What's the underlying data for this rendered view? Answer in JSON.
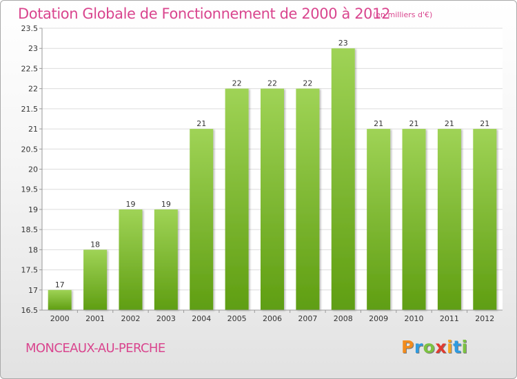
{
  "title": "Dotation Globale de Fonctionnement de 2000 à 2012",
  "subtitle": "(en milliers d'€)",
  "commune": "MONCEAUX-AU-PERCHE",
  "logo": {
    "letters": [
      "P",
      "r",
      "o",
      "x",
      "i",
      "t",
      "i"
    ],
    "colors": [
      "#f28c1e",
      "#2f9be0",
      "#7cc242",
      "#e23a2f",
      "#f5a623",
      "#2f9be0",
      "#7cc242"
    ]
  },
  "colors": {
    "title": "#d9458e",
    "bar_light": "#9fd356",
    "bar_dark": "#5f9e12"
  },
  "chart_data": {
    "type": "bar",
    "categories": [
      "2000",
      "2001",
      "2002",
      "2003",
      "2004",
      "2005",
      "2006",
      "2007",
      "2008",
      "2009",
      "2010",
      "2011",
      "2012"
    ],
    "values": [
      17,
      18,
      19,
      19,
      21,
      22,
      22,
      22,
      23,
      21,
      21,
      21,
      21
    ],
    "value_labels": [
      "17",
      "18",
      "19",
      "19",
      "21",
      "22",
      "22",
      "22",
      "23",
      "21",
      "21",
      "21",
      "21"
    ],
    "ylim": [
      16.5,
      23.5
    ],
    "yticks": [
      16.5,
      17,
      17.5,
      18,
      18.5,
      19,
      19.5,
      20,
      20.5,
      21,
      21.5,
      22,
      22.5,
      23,
      23.5
    ],
    "ytick_labels": [
      "16.5",
      "17",
      "17.5",
      "18",
      "18.5",
      "19",
      "19.5",
      "20",
      "20.5",
      "21",
      "21.5",
      "22",
      "22.5",
      "23",
      "23.5"
    ],
    "grid": true,
    "legend": "none"
  }
}
